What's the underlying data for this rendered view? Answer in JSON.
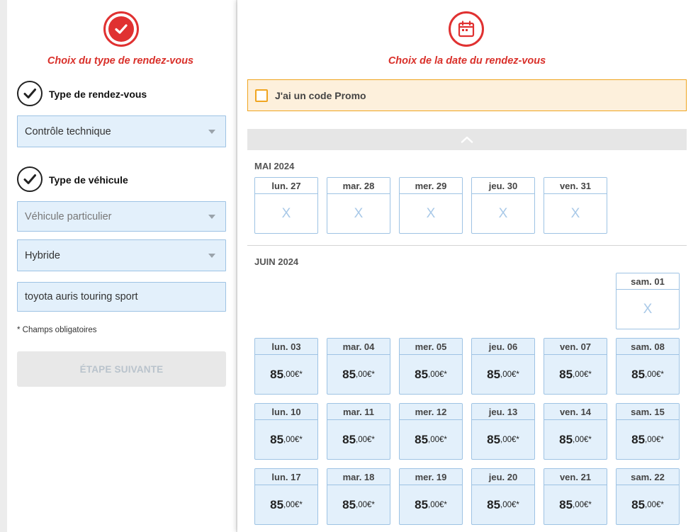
{
  "left": {
    "step_title": "Choix du type de rendez-vous",
    "appointment_type_label": "Type de rendez-vous",
    "appointment_type_value": "Contrôle technique",
    "vehicle_type_label": "Type de véhicule",
    "vehicle_category_value": "Véhicule particulier",
    "energy_value": "Hybride",
    "model_value": "toyota auris touring sport",
    "required_note": "* Champs obligatoires",
    "next_button": "ÉTAPE SUIVANTE"
  },
  "right": {
    "step_title": "Choix de la date du rendez-vous",
    "promo_label": "J'ai un code Promo",
    "months": [
      {
        "label": "MAI 2024",
        "days": [
          {
            "label": "lun. 27",
            "status": "unavailable",
            "mark": "X"
          },
          {
            "label": "mar. 28",
            "status": "unavailable",
            "mark": "X"
          },
          {
            "label": "mer. 29",
            "status": "unavailable",
            "mark": "X"
          },
          {
            "label": "jeu. 30",
            "status": "unavailable",
            "mark": "X"
          },
          {
            "label": "ven. 31",
            "status": "unavailable",
            "mark": "X"
          }
        ]
      },
      {
        "label": "JUIN 2024",
        "days": [
          {
            "label": "sam. 01",
            "status": "unavailable",
            "mark": "X"
          },
          {
            "label": "lun. 03",
            "status": "available",
            "price_main": "85",
            "price_dec": ",00€*"
          },
          {
            "label": "mar. 04",
            "status": "available",
            "price_main": "85",
            "price_dec": ",00€*"
          },
          {
            "label": "mer. 05",
            "status": "available",
            "price_main": "85",
            "price_dec": ",00€*"
          },
          {
            "label": "jeu. 06",
            "status": "available",
            "price_main": "85",
            "price_dec": ",00€*"
          },
          {
            "label": "ven. 07",
            "status": "available",
            "price_main": "85",
            "price_dec": ",00€*"
          },
          {
            "label": "sam. 08",
            "status": "available",
            "price_main": "85",
            "price_dec": ",00€*"
          },
          {
            "label": "lun. 10",
            "status": "available",
            "price_main": "85",
            "price_dec": ",00€*"
          },
          {
            "label": "mar. 11",
            "status": "available",
            "price_main": "85",
            "price_dec": ",00€*"
          },
          {
            "label": "mer. 12",
            "status": "available",
            "price_main": "85",
            "price_dec": ",00€*"
          },
          {
            "label": "jeu. 13",
            "status": "available",
            "price_main": "85",
            "price_dec": ",00€*"
          },
          {
            "label": "ven. 14",
            "status": "available",
            "price_main": "85",
            "price_dec": ",00€*"
          },
          {
            "label": "sam. 15",
            "status": "available",
            "price_main": "85",
            "price_dec": ",00€*"
          },
          {
            "label": "lun. 17",
            "status": "available",
            "price_main": "85",
            "price_dec": ",00€*"
          },
          {
            "label": "mar. 18",
            "status": "available",
            "price_main": "85",
            "price_dec": ",00€*"
          },
          {
            "label": "mer. 19",
            "status": "available",
            "price_main": "85",
            "price_dec": ",00€*"
          },
          {
            "label": "jeu. 20",
            "status": "available",
            "price_main": "85",
            "price_dec": ",00€*"
          },
          {
            "label": "ven. 21",
            "status": "available",
            "price_main": "85",
            "price_dec": ",00€*"
          },
          {
            "label": "sam. 22",
            "status": "available",
            "price_main": "85",
            "price_dec": ",00€*"
          }
        ]
      }
    ]
  },
  "colors": {
    "accent_red": "#d9302a",
    "field_bg": "#e3f0fb",
    "field_border": "#9ec3e4",
    "promo_bg": "#fdf0dc",
    "promo_border": "#f0a520"
  },
  "icons": {
    "step1": "checkmark-badge-icon",
    "step2": "calendar-badge-icon",
    "field_done": "checkmark-circle-icon",
    "dropdown": "caret-down-icon",
    "collapse": "chevron-up-icon"
  }
}
